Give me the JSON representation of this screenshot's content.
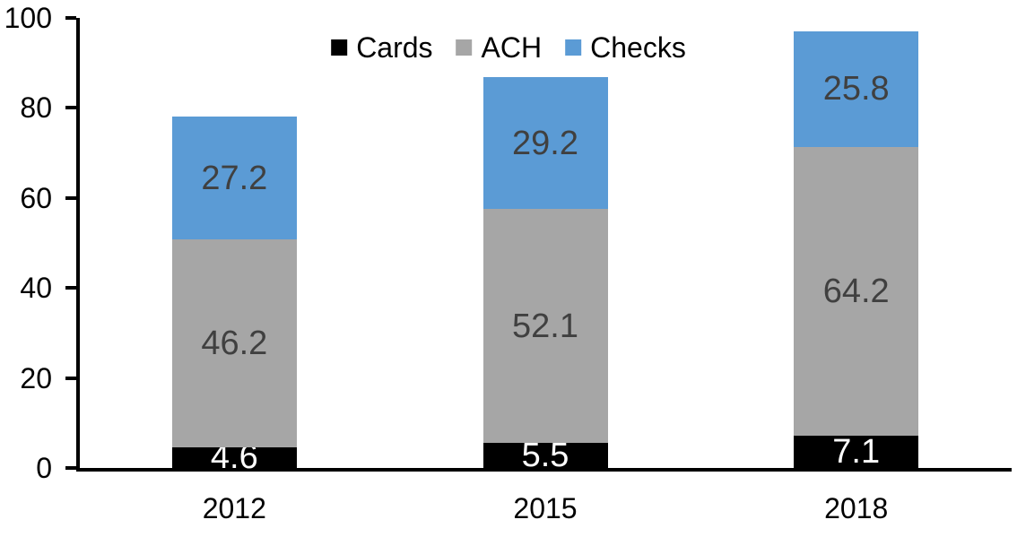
{
  "chart_data": {
    "type": "bar",
    "stacked": true,
    "title": "",
    "xlabel": "",
    "ylabel": "",
    "categories": [
      "2012",
      "2015",
      "2018"
    ],
    "series": [
      {
        "name": "Cards",
        "color": "#000000",
        "label_color": "#FFFFFF",
        "values": [
          4.6,
          5.5,
          7.1
        ]
      },
      {
        "name": "ACH",
        "color": "#A6A6A6",
        "label_color": "#404040",
        "values": [
          46.2,
          52.1,
          64.2
        ]
      },
      {
        "name": "Checks",
        "color": "#5B9BD5",
        "label_color": "#404040",
        "values": [
          27.2,
          29.2,
          25.8
        ]
      }
    ],
    "ylim": [
      0,
      100
    ],
    "yticks": [
      0,
      20,
      40,
      60,
      80,
      100
    ],
    "grid": false,
    "legend_position": "top-center",
    "axis_color": "#000000",
    "background_color": "#FFFFFF",
    "data_labels_shown": true
  }
}
